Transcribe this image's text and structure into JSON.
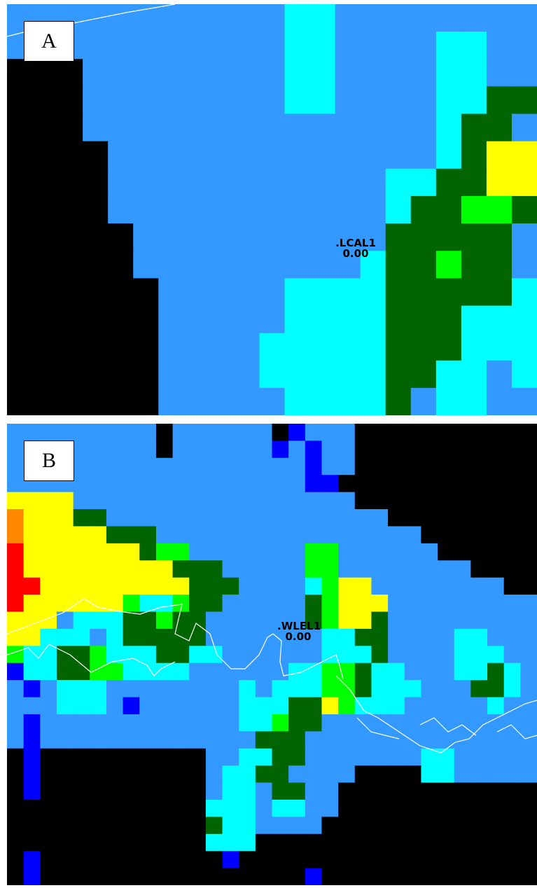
{
  "palette": {
    "black": "#000000",
    "blue_light": "#3399ff",
    "cyan": "#00ffff",
    "dark_green": "#006400",
    "green": "#00ff00",
    "yellow_green": "#aaff33",
    "yellow": "#ffff00",
    "gold": "#ffcc00",
    "orange": "#ff8800",
    "red": "#ff0000",
    "navy": "#0000ff",
    "coastline": "#ffffff"
  },
  "panels": [
    {
      "label": "A",
      "station": {
        "name": ".LCAL1",
        "value": "0.00"
      },
      "grid": [
        "BBBBBBBBBBBCCBBBBBBBB",
        "BBBBBBBBBBBCCBBBBCCBB",
        "KKKBBBBBBBBCCBBBBCCBB",
        "KKKBBBBBBBBCCBBBBCCDD",
        "KKKBBBBBBBBBBBBBBCDDB",
        "KKKKBBBBBBBBBBBBBCDYY",
        "KKKKBBBBBBBBBBBCCDDYY",
        "KKKKBBBBBBBBBBBCDDGGD",
        "KKKKKBBBBBBBBBBDDDDDB",
        "KKKKKBBBBBBBBBCDDGDDB",
        "KKKKKKBBBBBCCCCDDDDDC",
        "KKKKKKBBBBBCCCCDDDCCC",
        "KKKKKKBBBBCCCCCDDDCCC",
        "KKKKKKBBBBCCCCCDDCCBC",
        "KKKKKKBBBBBCCCCDBCCBB"
      ]
    },
    {
      "label": "B",
      "station": {
        "name": ".WLEL1",
        "value": "0.00"
      },
      "grid": [
        "BBBBBBBBBKBBBBBBKNBBBKKKKKKKKKKK",
        "BBBBBBBBBKBBBBBBNBNBBKKKKKKKKKKK",
        "BBBBBBBBBBBBBBBBBBNBBKKKKKKKKKKK",
        "BBBBBBBBBBBBBBBBBBNNKKKKKKKKKKKK",
        "YYYYBBBBBBBBBBBBBBBBBKKKKKKKKKKK",
        "OYYYDDBBBBBBBBBBBBBBBBBKKKKKKKKK",
        "OYYYYYDDDBBBBBBBBBBBBBBBBKKKKKKK",
        "RYYYYYYYDGGBBBBBBBGGBBBBBBKKKKKK",
        "RYYYYYYYYYDDDBBBBBGGBBBBBBBBKKKK",
        "RRYYYYYYYYYDDDBBBBCGYYBBBBBBBBKK",
        "RYYYYYYGCCGDDBBBBBDGYYYBBBBBBBBB",
        "YYYBCCCDDGDDBBBBBBDGYYDBBBBBBBBB",
        "YYCCCBCDDDDDBBBBBBBCCDDBBBBCCBBB",
        "GCCDDGCCCDDCCBBBBBBCCCDBBBBCCCBB",
        "NCCDDGGCCCCBBBBBBCCGGDCCBBBCCDCB",
        "BNBCCCBBBBBBBBCBCCCGGDCCCBBBDDCB",
        "BBBCCCBNBBBBBBCCCDDYGCCCBBBBBCBB",
        "BNBBBBBBBBBBBBCCGDDBBBBBBBBBBBBB",
        "BNBBBBBBBBBBBBBDDDBBBBBBBBBBBBBB",
        "KNKKKKKKKKKKBBCCDDBBBBBBBCCBBBBB",
        "KNKKKKKKKKKKBCCDDBBBBKKKKCCBBBBB",
        "KNKKKKKKKKKKBCCBDDBBKKKKKKKKKKKK",
        "KKKKKKKKKKKKCCCBCCBBKKKKKKKKKKKK",
        "KKKKKKKKKKKKDCCBBBBKKKKKKKKKKKKK",
        "KKKKKKKKKKKKCCCKKKKKKKKKKKKKKKKK",
        "KNKKKKKKKKKKKNKKKKKKKKKKKKKKKKKK",
        "KNKKKKKKKKKKKKKKKKNKKKKKKKKKKKKK"
      ]
    }
  ]
}
